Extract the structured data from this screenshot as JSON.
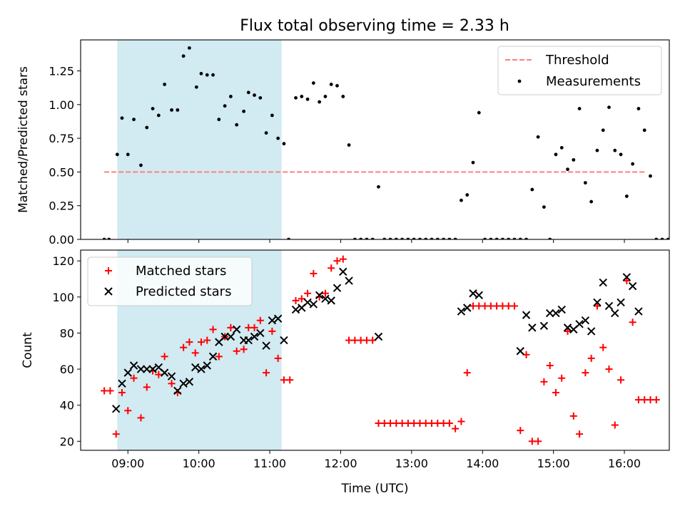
{
  "title": "Flux total observing time = 2.33 h",
  "colors": {
    "band": "#add8e6",
    "threshold": "#ff7f7f",
    "measurement": "#000000",
    "matched": "#ff0000",
    "predicted": "#000000"
  },
  "chart_data": [
    {
      "type": "scatter",
      "ylabel": "Matched/Predicted stars",
      "xlabel": "",
      "xlim": [
        "08:20",
        "16:38"
      ],
      "ylim": [
        0,
        1.48
      ],
      "yticks": [
        0.0,
        0.25,
        0.5,
        0.75,
        1.0,
        1.25
      ],
      "ytick_labels": [
        "0.00",
        "0.25",
        "0.50",
        "0.75",
        "1.00",
        "1.25"
      ],
      "legend_position": "upper right",
      "shaded_span": [
        "08:51",
        "11:10"
      ],
      "threshold": {
        "name": "Threshold",
        "y": 0.5,
        "x": [
          "08:40",
          "16:17"
        ]
      },
      "series": [
        {
          "name": "Measurements",
          "marker": "dot",
          "points": [
            [
              "08:40",
              0.0
            ],
            [
              "08:44",
              0.0
            ],
            [
              "08:51",
              0.63
            ],
            [
              "08:55",
              0.9
            ],
            [
              "09:00",
              0.63
            ],
            [
              "09:05",
              0.89
            ],
            [
              "09:11",
              0.55
            ],
            [
              "09:16",
              0.83
            ],
            [
              "09:21",
              0.97
            ],
            [
              "09:26",
              0.92
            ],
            [
              "09:31",
              1.15
            ],
            [
              "09:37",
              0.96
            ],
            [
              "09:42",
              0.96
            ],
            [
              "09:47",
              1.36
            ],
            [
              "09:52",
              1.42
            ],
            [
              "09:58",
              1.13
            ],
            [
              "10:02",
              1.23
            ],
            [
              "10:07",
              1.22
            ],
            [
              "10:12",
              1.22
            ],
            [
              "10:17",
              0.89
            ],
            [
              "10:22",
              0.99
            ],
            [
              "10:27",
              1.06
            ],
            [
              "10:32",
              0.85
            ],
            [
              "10:38",
              0.95
            ],
            [
              "10:42",
              1.09
            ],
            [
              "10:47",
              1.07
            ],
            [
              "10:52",
              1.05
            ],
            [
              "10:57",
              0.79
            ],
            [
              "11:02",
              0.92
            ],
            [
              "11:07",
              0.75
            ],
            [
              "11:12",
              0.71
            ],
            [
              "11:16",
              0.0
            ],
            [
              "11:22",
              1.05
            ],
            [
              "11:27",
              1.06
            ],
            [
              "11:32",
              1.04
            ],
            [
              "11:37",
              1.16
            ],
            [
              "11:42",
              1.02
            ],
            [
              "11:47",
              1.06
            ],
            [
              "11:52",
              1.15
            ],
            [
              "11:57",
              1.14
            ],
            [
              "12:02",
              1.06
            ],
            [
              "12:07",
              0.7
            ],
            [
              "12:12",
              0.0
            ],
            [
              "12:17",
              0.0
            ],
            [
              "12:22",
              0.0
            ],
            [
              "12:27",
              0.0
            ],
            [
              "12:32",
              0.39
            ],
            [
              "12:37",
              0.0
            ],
            [
              "12:42",
              0.0
            ],
            [
              "12:47",
              0.0
            ],
            [
              "12:52",
              0.0
            ],
            [
              "12:57",
              0.0
            ],
            [
              "13:02",
              0.0
            ],
            [
              "13:07",
              0.0
            ],
            [
              "13:12",
              0.0
            ],
            [
              "13:17",
              0.0
            ],
            [
              "13:22",
              0.0
            ],
            [
              "13:27",
              0.0
            ],
            [
              "13:32",
              0.0
            ],
            [
              "13:37",
              0.0
            ],
            [
              "13:42",
              0.29
            ],
            [
              "13:47",
              0.33
            ],
            [
              "13:52",
              0.57
            ],
            [
              "13:57",
              0.94
            ],
            [
              "14:02",
              0.0
            ],
            [
              "14:07",
              0.0
            ],
            [
              "14:12",
              0.0
            ],
            [
              "14:17",
              0.0
            ],
            [
              "14:22",
              0.0
            ],
            [
              "14:27",
              0.0
            ],
            [
              "14:32",
              0.0
            ],
            [
              "14:37",
              0.0
            ],
            [
              "14:42",
              0.37
            ],
            [
              "14:47",
              0.76
            ],
            [
              "14:52",
              0.24
            ],
            [
              "14:57",
              0.0
            ],
            [
              "15:02",
              0.63
            ],
            [
              "15:07",
              0.68
            ],
            [
              "15:12",
              0.52
            ],
            [
              "15:17",
              0.59
            ],
            [
              "15:22",
              0.97
            ],
            [
              "15:27",
              0.42
            ],
            [
              "15:32",
              0.28
            ],
            [
              "15:37",
              0.66
            ],
            [
              "15:42",
              0.81
            ],
            [
              "15:47",
              0.98
            ],
            [
              "15:52",
              0.66
            ],
            [
              "15:57",
              0.63
            ],
            [
              "16:02",
              0.32
            ],
            [
              "16:07",
              0.56
            ],
            [
              "16:12",
              0.97
            ],
            [
              "16:17",
              0.81
            ],
            [
              "16:22",
              0.47
            ],
            [
              "16:27",
              0.0
            ],
            [
              "16:32",
              0.0
            ],
            [
              "16:37",
              0.0
            ]
          ]
        }
      ]
    },
    {
      "type": "scatter",
      "ylabel": "Count",
      "xlabel": "Time (UTC)",
      "xlim": [
        "08:20",
        "16:38"
      ],
      "ylim": [
        15,
        126
      ],
      "yticks": [
        20,
        40,
        60,
        80,
        100,
        120
      ],
      "ytick_labels": [
        "20",
        "40",
        "60",
        "80",
        "100",
        "120"
      ],
      "xticks": [
        "09:00",
        "10:00",
        "11:00",
        "12:00",
        "13:00",
        "14:00",
        "15:00",
        "16:00"
      ],
      "legend_position": "upper left",
      "shaded_span": [
        "08:51",
        "11:10"
      ],
      "series": [
        {
          "name": "Matched stars",
          "marker": "plus",
          "points": [
            [
              "08:40",
              48
            ],
            [
              "08:45",
              48
            ],
            [
              "08:50",
              24
            ],
            [
              "08:55",
              47
            ],
            [
              "09:00",
              37
            ],
            [
              "09:05",
              55
            ],
            [
              "09:11",
              33
            ],
            [
              "09:16",
              50
            ],
            [
              "09:21",
              59
            ],
            [
              "09:26",
              57
            ],
            [
              "09:31",
              67
            ],
            [
              "09:37",
              52
            ],
            [
              "09:42",
              47
            ],
            [
              "09:47",
              72
            ],
            [
              "09:52",
              75
            ],
            [
              "09:57",
              69
            ],
            [
              "10:02",
              75
            ],
            [
              "10:07",
              76
            ],
            [
              "10:12",
              82
            ],
            [
              "10:17",
              67
            ],
            [
              "10:22",
              78
            ],
            [
              "10:27",
              83
            ],
            [
              "10:32",
              70
            ],
            [
              "10:38",
              71
            ],
            [
              "10:42",
              83
            ],
            [
              "10:47",
              83
            ],
            [
              "10:52",
              87
            ],
            [
              "10:57",
              58
            ],
            [
              "11:02",
              81
            ],
            [
              "11:07",
              66
            ],
            [
              "11:12",
              54
            ],
            [
              "11:17",
              54
            ],
            [
              "11:22",
              98
            ],
            [
              "11:27",
              99
            ],
            [
              "11:32",
              102
            ],
            [
              "11:37",
              113
            ],
            [
              "11:42",
              100
            ],
            [
              "11:47",
              102
            ],
            [
              "11:52",
              116
            ],
            [
              "11:57",
              120
            ],
            [
              "12:02",
              121
            ],
            [
              "12:07",
              76
            ],
            [
              "12:12",
              76
            ],
            [
              "12:17",
              76
            ],
            [
              "12:22",
              76
            ],
            [
              "12:27",
              76
            ],
            [
              "12:32",
              30
            ],
            [
              "12:37",
              30
            ],
            [
              "12:42",
              30
            ],
            [
              "12:47",
              30
            ],
            [
              "12:52",
              30
            ],
            [
              "12:57",
              30
            ],
            [
              "13:02",
              30
            ],
            [
              "13:07",
              30
            ],
            [
              "13:12",
              30
            ],
            [
              "13:17",
              30
            ],
            [
              "13:22",
              30
            ],
            [
              "13:27",
              30
            ],
            [
              "13:32",
              30
            ],
            [
              "13:37",
              27
            ],
            [
              "13:42",
              31
            ],
            [
              "13:47",
              58
            ],
            [
              "13:52",
              95
            ],
            [
              "13:57",
              95
            ],
            [
              "14:02",
              95
            ],
            [
              "14:07",
              95
            ],
            [
              "14:12",
              95
            ],
            [
              "14:17",
              95
            ],
            [
              "14:22",
              95
            ],
            [
              "14:27",
              95
            ],
            [
              "14:32",
              26
            ],
            [
              "14:37",
              68
            ],
            [
              "14:42",
              20
            ],
            [
              "14:47",
              20
            ],
            [
              "14:52",
              53
            ],
            [
              "14:57",
              62
            ],
            [
              "15:02",
              47
            ],
            [
              "15:07",
              55
            ],
            [
              "15:12",
              81
            ],
            [
              "15:17",
              34
            ],
            [
              "15:22",
              24
            ],
            [
              "15:27",
              58
            ],
            [
              "15:32",
              66
            ],
            [
              "15:37",
              95
            ],
            [
              "15:42",
              72
            ],
            [
              "15:47",
              60
            ],
            [
              "15:52",
              29
            ],
            [
              "15:57",
              54
            ],
            [
              "16:02",
              109
            ],
            [
              "16:07",
              86
            ],
            [
              "16:12",
              43
            ],
            [
              "16:17",
              43
            ],
            [
              "16:22",
              43
            ],
            [
              "16:27",
              43
            ]
          ]
        },
        {
          "name": "Predicted stars",
          "marker": "x",
          "points": [
            [
              "08:50",
              38
            ],
            [
              "08:55",
              52
            ],
            [
              "09:00",
              58
            ],
            [
              "09:05",
              62
            ],
            [
              "09:11",
              60
            ],
            [
              "09:16",
              60
            ],
            [
              "09:21",
              60
            ],
            [
              "09:26",
              61
            ],
            [
              "09:31",
              58
            ],
            [
              "09:37",
              56
            ],
            [
              "09:42",
              48
            ],
            [
              "09:47",
              52
            ],
            [
              "09:52",
              53
            ],
            [
              "09:57",
              61
            ],
            [
              "10:02",
              60
            ],
            [
              "10:07",
              62
            ],
            [
              "10:12",
              67
            ],
            [
              "10:17",
              75
            ],
            [
              "10:22",
              78
            ],
            [
              "10:27",
              78
            ],
            [
              "10:32",
              82
            ],
            [
              "10:38",
              76
            ],
            [
              "10:42",
              76
            ],
            [
              "10:47",
              78
            ],
            [
              "10:52",
              80
            ],
            [
              "10:57",
              73
            ],
            [
              "11:02",
              87
            ],
            [
              "11:07",
              88
            ],
            [
              "11:12",
              76
            ],
            [
              "11:22",
              93
            ],
            [
              "11:27",
              94
            ],
            [
              "11:32",
              97
            ],
            [
              "11:37",
              96
            ],
            [
              "11:42",
              101
            ],
            [
              "11:47",
              99
            ],
            [
              "11:52",
              98
            ],
            [
              "11:57",
              105
            ],
            [
              "12:02",
              114
            ],
            [
              "12:07",
              109
            ],
            [
              "12:32",
              78
            ],
            [
              "13:42",
              92
            ],
            [
              "13:47",
              94
            ],
            [
              "13:52",
              102
            ],
            [
              "13:57",
              101
            ],
            [
              "14:32",
              70
            ],
            [
              "14:37",
              90
            ],
            [
              "14:42",
              83
            ],
            [
              "14:52",
              84
            ],
            [
              "14:57",
              91
            ],
            [
              "15:02",
              91
            ],
            [
              "15:07",
              93
            ],
            [
              "15:12",
              83
            ],
            [
              "15:17",
              82
            ],
            [
              "15:22",
              85
            ],
            [
              "15:27",
              87
            ],
            [
              "15:32",
              81
            ],
            [
              "15:37",
              97
            ],
            [
              "15:42",
              108
            ],
            [
              "15:47",
              95
            ],
            [
              "15:52",
              91
            ],
            [
              "15:57",
              97
            ],
            [
              "16:02",
              111
            ],
            [
              "16:07",
              106
            ],
            [
              "16:12",
              92
            ]
          ]
        }
      ]
    }
  ]
}
